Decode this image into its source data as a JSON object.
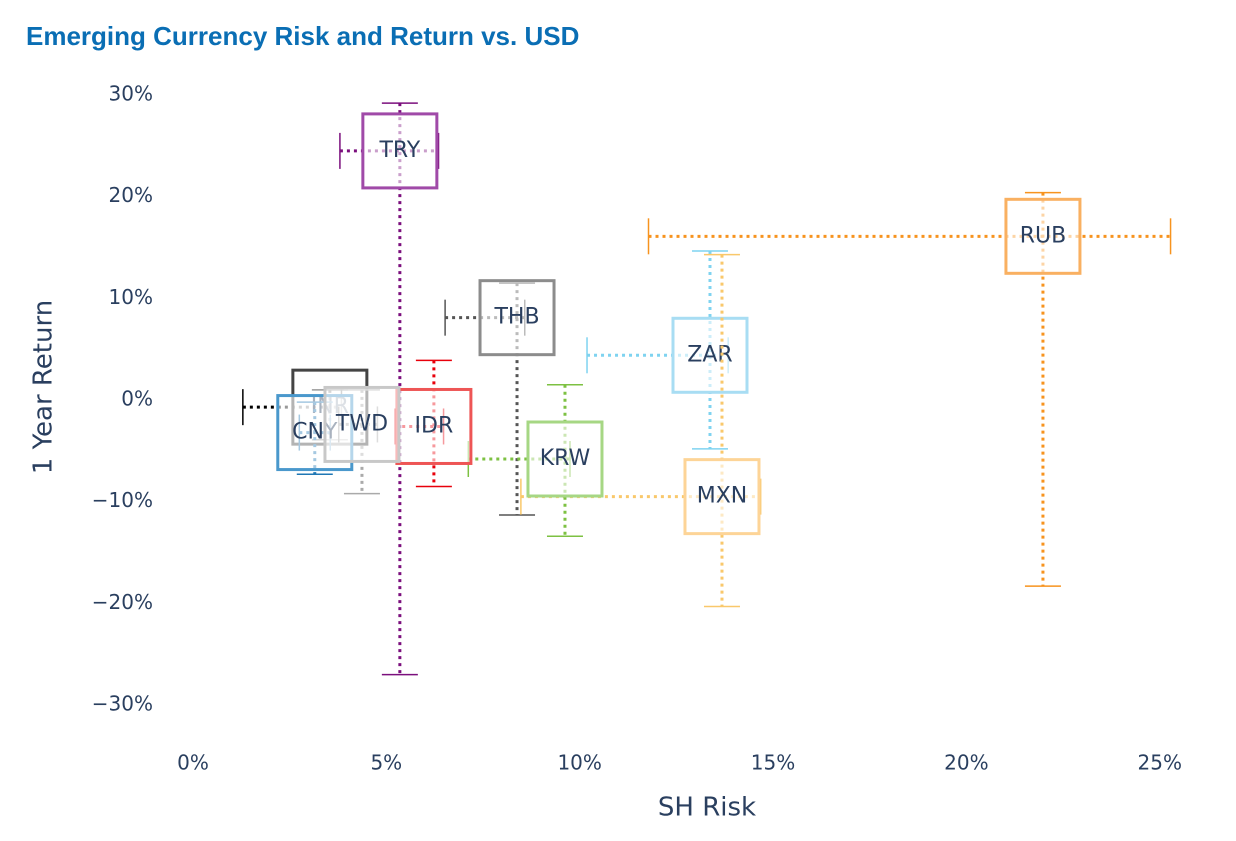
{
  "chart_data": {
    "type": "scatter",
    "title": "Emerging Currency Risk and Return vs. USD",
    "x_label": "SH Risk",
    "y_label": "1 Year Return",
    "xlim": [
      -1,
      26
    ],
    "ylim": [
      -33,
      31
    ],
    "xticks": [
      {
        "value": 0,
        "label": "0%"
      },
      {
        "value": 5,
        "label": "5%"
      },
      {
        "value": 10,
        "label": "10%"
      },
      {
        "value": 15,
        "label": "15%"
      },
      {
        "value": 20,
        "label": "20%"
      },
      {
        "value": 25,
        "label": "25%"
      }
    ],
    "yticks": [
      {
        "value": 30,
        "label": "30%"
      },
      {
        "value": 20,
        "label": "20%"
      },
      {
        "value": 10,
        "label": "10%"
      },
      {
        "value": 0,
        "label": "0%"
      },
      {
        "value": -10,
        "label": "−10%"
      },
      {
        "value": -20,
        "label": "−20%"
      },
      {
        "value": -30,
        "label": "−30%"
      }
    ],
    "series": [
      {
        "name": "TRY",
        "color": "#7b0f7d",
        "box_color": "#a04aa8",
        "x": 5.35,
        "y": 24.5,
        "x_error_minus": 1.55,
        "x_error_plus": 1.0,
        "y_error_minus": 51.5,
        "y_error_plus": 4.7
      },
      {
        "name": "RUB",
        "color": "#f7931e",
        "box_color": "#f9b061",
        "x": 21.98,
        "y": 16.1,
        "x_error_minus": 10.2,
        "x_error_plus": 3.3,
        "y_error_minus": 34.4,
        "y_error_plus": 4.3
      },
      {
        "name": "THB",
        "color": "#555555",
        "box_color": "#8c8c8c",
        "x": 8.38,
        "y": 8.1,
        "x_error_minus": 1.86,
        "x_error_plus": 0.2,
        "y_error_minus": 19.4,
        "y_error_plus": 3.4
      },
      {
        "name": "ZAR",
        "color": "#7fd3f0",
        "box_color": "#a8ddf3",
        "x": 13.37,
        "y": 4.4,
        "x_error_minus": 3.18,
        "x_error_plus": 0.47,
        "y_error_minus": 9.2,
        "y_error_plus": 10.25
      },
      {
        "name": "MXN",
        "color": "#f9c86b",
        "box_color": "#fdd497",
        "x": 13.68,
        "y": -9.5,
        "x_error_minus": 5.2,
        "x_error_plus": 1.0,
        "y_error_minus": 10.8,
        "y_error_plus": 23.8
      },
      {
        "name": "KRW",
        "color": "#7dc142",
        "box_color": "#a6d784",
        "x": 9.62,
        "y": -5.8,
        "x_error_minus": 2.5,
        "x_error_plus": 0.13,
        "y_error_minus": 7.6,
        "y_error_plus": 7.3
      },
      {
        "name": "IDR",
        "color": "#e8000b",
        "box_color": "#ee5555",
        "x": 6.23,
        "y": -2.6,
        "x_error_minus": 1.0,
        "x_error_plus": 0.25,
        "y_error_minus": 5.9,
        "y_error_plus": 6.5
      },
      {
        "name": "INR",
        "color": "#000000",
        "box_color": "#444444",
        "x": 3.54,
        "y": -0.7,
        "x_error_minus": 2.25,
        "x_error_plus": 0.3,
        "y_error_minus": 3.2,
        "y_error_plus": 1.7
      },
      {
        "name": "CNY",
        "color": "#1f77b4",
        "box_color": "#4a98cc",
        "x": 3.15,
        "y": -3.2,
        "x_error_minus": 0.4,
        "x_error_plus": 0.4,
        "y_error_minus": 4.1,
        "y_error_plus": 3.0
      },
      {
        "name": "TWD",
        "color": "#aaaaaa",
        "box_color": "#c8c8c8",
        "x": 4.37,
        "y": -2.4,
        "x_error_minus": 0.6,
        "x_error_plus": 0.4,
        "y_error_minus": 6.8,
        "y_error_plus": 3.4
      }
    ]
  }
}
